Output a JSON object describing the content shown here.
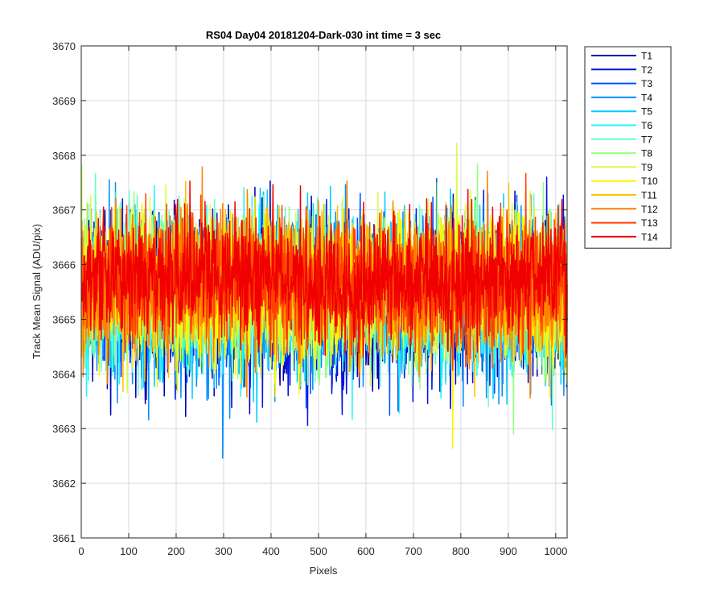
{
  "chart_data": {
    "type": "line",
    "title": "RS04 Day04 20181204-Dark-030 int time = 3 sec",
    "xlabel": "Pixels",
    "ylabel": "Track Mean Signal (ADU/pix)",
    "xlim": [
      0,
      1024
    ],
    "ylim": [
      3661,
      3670
    ],
    "xticks": [
      0,
      100,
      200,
      300,
      400,
      500,
      600,
      700,
      800,
      900,
      1000
    ],
    "yticks": [
      3661,
      3662,
      3663,
      3664,
      3665,
      3666,
      3667,
      3668,
      3669,
      3670
    ],
    "grid": true,
    "legend_position": "outside-top-right",
    "n_points": 1024,
    "series": [
      {
        "name": "T1",
        "color": "#0000B0",
        "center": 3665.3,
        "amplitude": 1.15
      },
      {
        "name": "T2",
        "color": "#0014E0",
        "center": 3665.3,
        "amplitude": 1.15
      },
      {
        "name": "T3",
        "color": "#0050FF",
        "center": 3665.4,
        "amplitude": 1.1
      },
      {
        "name": "T4",
        "color": "#0090FF",
        "center": 3665.4,
        "amplitude": 1.1
      },
      {
        "name": "T5",
        "color": "#00CCFF",
        "center": 3665.45,
        "amplitude": 1.05
      },
      {
        "name": "T6",
        "color": "#1EF5FF",
        "center": 3665.45,
        "amplitude": 1.05
      },
      {
        "name": "T7",
        "color": "#64FFC8",
        "center": 3665.5,
        "amplitude": 1.1
      },
      {
        "name": "T8",
        "color": "#96FF82",
        "center": 3665.55,
        "amplitude": 1.1
      },
      {
        "name": "T9",
        "color": "#D2FF46",
        "center": 3665.6,
        "amplitude": 1.05
      },
      {
        "name": "T10",
        "color": "#FFF500",
        "center": 3665.6,
        "amplitude": 1.05
      },
      {
        "name": "T11",
        "color": "#FFC000",
        "center": 3665.6,
        "amplitude": 1.0
      },
      {
        "name": "T12",
        "color": "#FF8000",
        "center": 3665.6,
        "amplitude": 1.0
      },
      {
        "name": "T13",
        "color": "#FF4000",
        "center": 3665.7,
        "amplitude": 0.95
      },
      {
        "name": "T14",
        "color": "#F00000",
        "center": 3665.75,
        "amplitude": 0.9
      }
    ]
  }
}
